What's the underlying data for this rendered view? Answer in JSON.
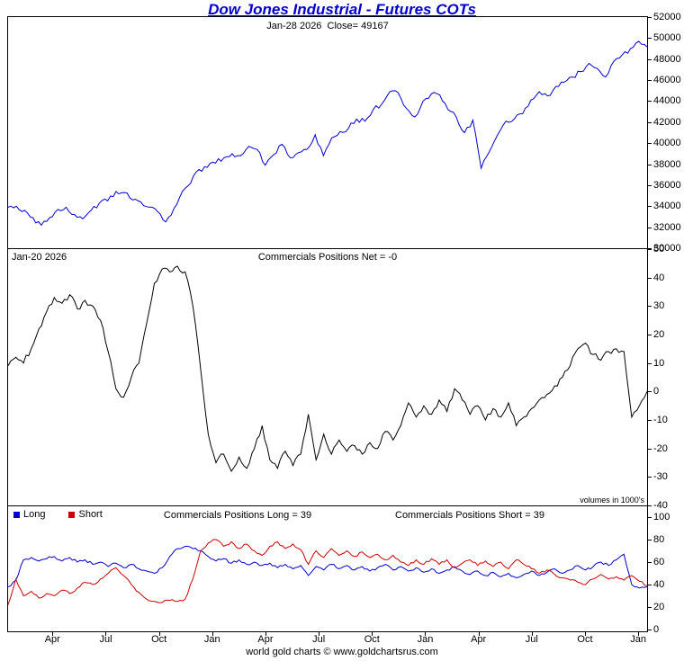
{
  "title": "Dow Jones Industrial - Futures COTs",
  "footer": "world gold charts © www.goldchartsrus.com",
  "colors": {
    "price": "#0000cc",
    "net": "#000000",
    "long": "#0000cc",
    "short": "#cc0000",
    "title": "#0000cc"
  },
  "xaxis": {
    "labels": [
      "Apr",
      "Jul",
      "Oct",
      "Jan",
      "Apr",
      "Jul",
      "Oct",
      "Jan",
      "Apr",
      "Jul",
      "Oct",
      "Jan"
    ],
    "positions": [
      0.0694,
      0.1528,
      0.2361,
      0.3194,
      0.4028,
      0.4861,
      0.5694,
      0.6528,
      0.7361,
      0.8194,
      0.9028,
      0.9861
    ]
  },
  "chart_data": [
    {
      "name": "dow-price",
      "type": "line",
      "title": "Jan-28 2026  Close= 49167",
      "ylabel": "",
      "ylim": [
        30000,
        52000
      ],
      "yticks": [
        52000,
        50000,
        48000,
        46000,
        44000,
        42000,
        40000,
        38000,
        36000,
        34000,
        32000,
        30000
      ],
      "grid": false,
      "series": [
        {
          "name": "Dow Jones Industrial Futures",
          "color": "#0000cc",
          "jitter": 260,
          "values": [
            33900,
            34000,
            33600,
            32900,
            32200,
            32900,
            33700,
            33900,
            33200,
            32800,
            33600,
            34300,
            34500,
            35400,
            35300,
            34600,
            34400,
            33900,
            33500,
            32500,
            33800,
            35400,
            36200,
            37500,
            37700,
            38100,
            38600,
            39000,
            38800,
            39700,
            39400,
            37900,
            38900,
            39900,
            38600,
            39100,
            39400,
            40800,
            38800,
            40500,
            41100,
            41400,
            42300,
            42100,
            43200,
            43700,
            44900,
            44800,
            43300,
            42500,
            44000,
            44700,
            44600,
            43200,
            42500,
            41000,
            42200,
            37600,
            39200,
            40800,
            42100,
            42300,
            42800,
            44100,
            44900,
            44500,
            45400,
            45800,
            46300,
            46800,
            47600,
            47100,
            46300,
            47800,
            48400,
            49000,
            49700,
            49167
          ]
        }
      ]
    },
    {
      "name": "commercials-net",
      "type": "line",
      "date_label": "Jan-20 2026",
      "title": "Commercials Positions Net = -0",
      "note": "volumes in 1000's",
      "ylim": [
        -40,
        50
      ],
      "yticks": [
        50,
        40,
        30,
        20,
        10,
        0,
        -10,
        -20,
        -30,
        -40
      ],
      "grid": false,
      "series": [
        {
          "name": "Commercials Net",
          "color": "#000000",
          "jitter": 1.1,
          "values": [
            9,
            12,
            10,
            15,
            22,
            28,
            33,
            31,
            34,
            29,
            32,
            30,
            25,
            14,
            1,
            -2,
            5,
            10,
            24,
            38,
            43,
            42,
            44,
            42,
            30,
            8,
            -15,
            -25,
            -22,
            -28,
            -23,
            -27,
            -20,
            -12,
            -24,
            -27,
            -21,
            -26,
            -22,
            -8,
            -24,
            -15,
            -22,
            -17,
            -21,
            -19,
            -22,
            -18,
            -20,
            -14,
            -17,
            -12,
            -4,
            -9,
            -5,
            -8,
            -3,
            -7,
            1,
            -3,
            -8,
            -5,
            -10,
            -6,
            -9,
            -4,
            -12,
            -9,
            -6,
            -3,
            -1,
            2,
            5,
            9,
            15,
            17,
            13,
            11,
            14,
            15,
            14,
            -9,
            -5,
            0
          ]
        }
      ]
    },
    {
      "name": "commercials-long-short",
      "type": "line",
      "legend": [
        {
          "label": "Long",
          "color": "#0000cc"
        },
        {
          "label": "Short",
          "color": "#cc0000"
        }
      ],
      "long_label": "Commercials Positions Long = 39",
      "short_label": "Commercials Positions Short = 39",
      "ylim": [
        0,
        100
      ],
      "yticks": [
        100,
        80,
        60,
        40,
        20,
        0
      ],
      "grid": false,
      "series": [
        {
          "name": "Long",
          "color": "#0000cc",
          "jitter": 1.2,
          "values": [
            38,
            44,
            62,
            64,
            61,
            63,
            65,
            61,
            64,
            60,
            62,
            58,
            60,
            56,
            59,
            55,
            58,
            54,
            52,
            50,
            55,
            65,
            72,
            74,
            72,
            70,
            65,
            61,
            63,
            59,
            62,
            58,
            60,
            57,
            59,
            55,
            58,
            54,
            57,
            48,
            56,
            53,
            58,
            54,
            57,
            53,
            56,
            52,
            55,
            58,
            53,
            56,
            52,
            55,
            51,
            54,
            50,
            53,
            56,
            52,
            49,
            52,
            48,
            51,
            47,
            50,
            46,
            49,
            52,
            48,
            51,
            54,
            50,
            53,
            57,
            53,
            56,
            60,
            57,
            62,
            67,
            40,
            37,
            38
          ]
        },
        {
          "name": "Short",
          "color": "#cc0000",
          "jitter": 1.2,
          "values": [
            22,
            45,
            30,
            34,
            28,
            32,
            30,
            35,
            32,
            37,
            42,
            40,
            45,
            50,
            55,
            48,
            40,
            33,
            27,
            25,
            24,
            26,
            25,
            27,
            45,
            70,
            77,
            80,
            74,
            78,
            72,
            76,
            70,
            66,
            74,
            78,
            72,
            76,
            71,
            58,
            70,
            64,
            72,
            66,
            70,
            65,
            69,
            64,
            67,
            62,
            66,
            60,
            57,
            62,
            58,
            63,
            58,
            62,
            55,
            59,
            62,
            57,
            61,
            56,
            60,
            54,
            62,
            58,
            54,
            50,
            53,
            49,
            46,
            44,
            42,
            40,
            45,
            49,
            45,
            47,
            44,
            48,
            43,
            39
          ]
        }
      ]
    }
  ]
}
